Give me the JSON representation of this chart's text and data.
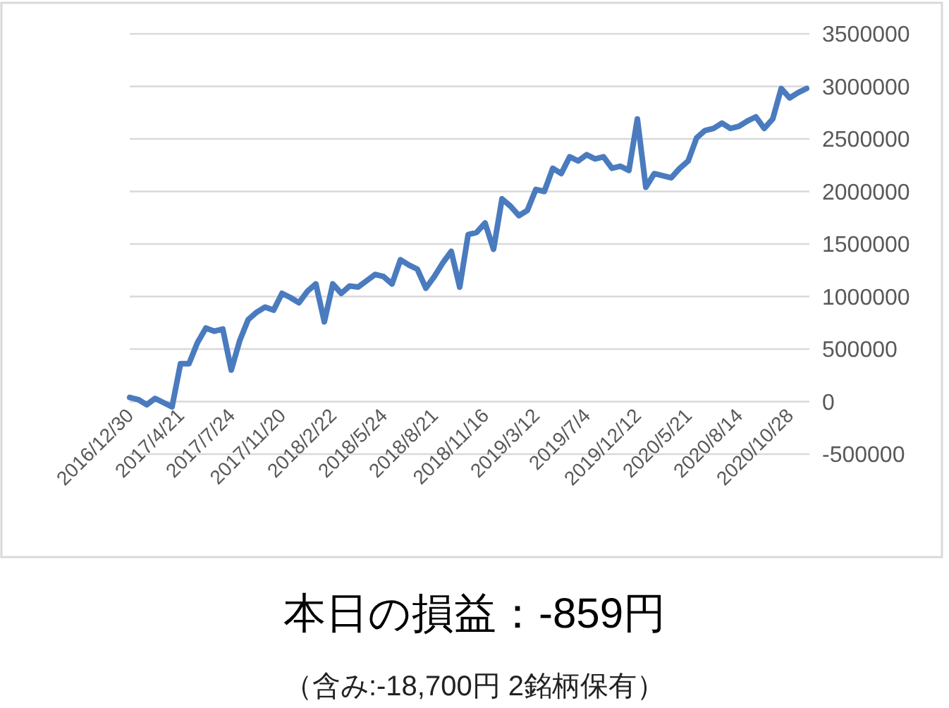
{
  "chart_data": {
    "type": "line",
    "title": "本日の損益：-859円",
    "subtitle": "（含み:-18,700円  2銘柄保有）",
    "categories": [
      "2016/12/30",
      null,
      null,
      null,
      null,
      null,
      "2017/4/21",
      null,
      null,
      null,
      null,
      null,
      "2017/7/24",
      null,
      null,
      null,
      null,
      null,
      "2017/11/20",
      null,
      null,
      null,
      null,
      null,
      "2018/2/22",
      null,
      null,
      null,
      null,
      null,
      "2018/5/24",
      null,
      null,
      null,
      null,
      null,
      "2018/8/21",
      null,
      null,
      null,
      null,
      null,
      "2018/11/16",
      null,
      null,
      null,
      null,
      null,
      "2019/3/12",
      null,
      null,
      null,
      null,
      null,
      "2019/7/4",
      null,
      null,
      null,
      null,
      null,
      "2019/12/12",
      null,
      null,
      null,
      null,
      null,
      "2020/5/21",
      null,
      null,
      null,
      null,
      null,
      "2020/8/14",
      null,
      null,
      null,
      null,
      null,
      "2020/10/28",
      null,
      null
    ],
    "series": [
      {
        "color": "#4a7bbf",
        "values": [
          40000,
          20000,
          -30000,
          30000,
          -10000,
          -50000,
          360000,
          360000,
          560000,
          700000,
          670000,
          690000,
          300000,
          580000,
          780000,
          850000,
          900000,
          870000,
          1030000,
          990000,
          940000,
          1050000,
          1120000,
          760000,
          1120000,
          1030000,
          1100000,
          1090000,
          1150000,
          1210000,
          1190000,
          1120000,
          1350000,
          1300000,
          1260000,
          1080000,
          1190000,
          1320000,
          1430000,
          1090000,
          1590000,
          1610000,
          1700000,
          1450000,
          1930000,
          1860000,
          1770000,
          1820000,
          2020000,
          2000000,
          2220000,
          2170000,
          2330000,
          2290000,
          2350000,
          2310000,
          2330000,
          2220000,
          2240000,
          2200000,
          2690000,
          2040000,
          2170000,
          2150000,
          2130000,
          2220000,
          2290000,
          2510000,
          2580000,
          2600000,
          2650000,
          2600000,
          2620000,
          2670000,
          2710000,
          2600000,
          2690000,
          2980000,
          2890000,
          2940000,
          2980000
        ]
      }
    ],
    "ylim": [
      -500000,
      3500000
    ],
    "yticks": [
      -500000,
      0,
      500000,
      1000000,
      1500000,
      2000000,
      2500000,
      3000000,
      3500000
    ],
    "grid": true
  }
}
